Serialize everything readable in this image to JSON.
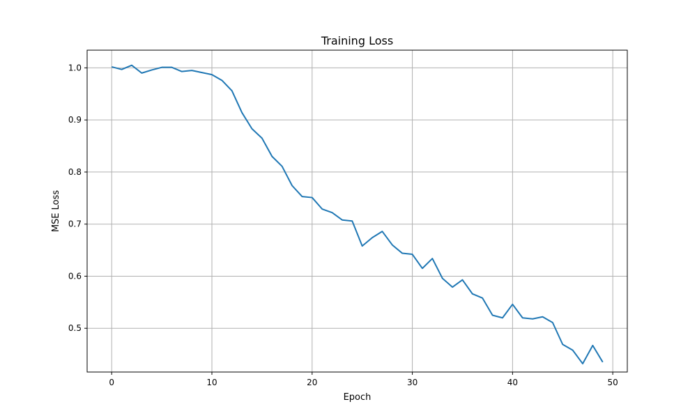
{
  "chart_data": {
    "type": "line",
    "title": "Training Loss",
    "xlabel": "Epoch",
    "ylabel": "MSE Loss",
    "xlim": [
      -2.45,
      51.45
    ],
    "ylim": [
      0.416,
      1.034
    ],
    "xticks": [
      0,
      10,
      20,
      30,
      40,
      50
    ],
    "yticks": [
      0.5,
      0.6,
      0.7,
      0.8,
      0.9,
      1.0
    ],
    "ytick_labels": [
      "0.5",
      "0.6",
      "0.7",
      "0.8",
      "0.9",
      "1.0"
    ],
    "grid": true,
    "series": [
      {
        "color": "#1f77b4",
        "x": [
          0,
          1,
          2,
          3,
          4,
          5,
          6,
          7,
          8,
          9,
          10,
          11,
          12,
          13,
          14,
          15,
          16,
          17,
          18,
          19,
          20,
          21,
          22,
          23,
          24,
          25,
          26,
          27,
          28,
          29,
          30,
          31,
          32,
          33,
          34,
          35,
          36,
          37,
          38,
          39,
          40,
          41,
          42,
          43,
          44,
          45,
          46,
          47,
          48,
          49
        ],
        "y": [
          1.002,
          0.997,
          1.005,
          0.99,
          0.996,
          1.001,
          1.001,
          0.993,
          0.995,
          0.991,
          0.987,
          0.976,
          0.956,
          0.914,
          0.883,
          0.865,
          0.83,
          0.811,
          0.774,
          0.753,
          0.751,
          0.729,
          0.722,
          0.708,
          0.706,
          0.658,
          0.674,
          0.686,
          0.66,
          0.644,
          0.642,
          0.615,
          0.634,
          0.596,
          0.579,
          0.593,
          0.566,
          0.558,
          0.525,
          0.52,
          0.546,
          0.52,
          0.518,
          0.522,
          0.511,
          0.469,
          0.458,
          0.432,
          0.467,
          0.435
        ]
      }
    ]
  }
}
